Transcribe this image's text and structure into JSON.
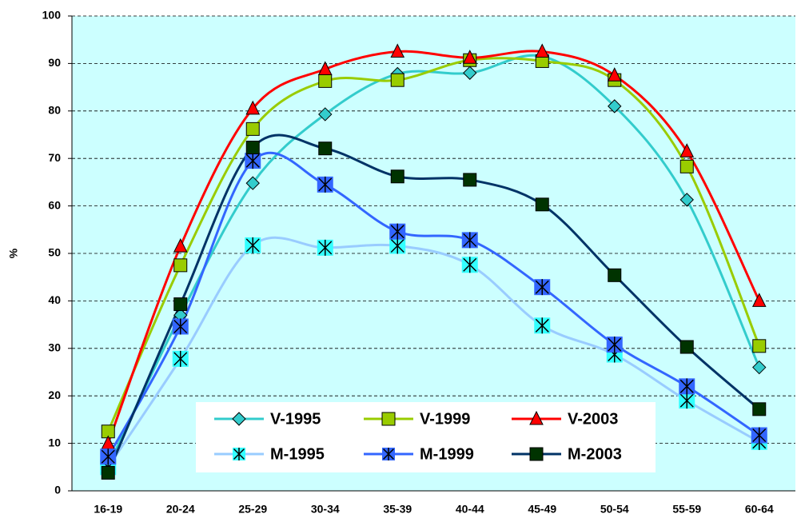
{
  "chart_data": {
    "type": "line",
    "y_label": "%",
    "categories": [
      "16-19",
      "20-24",
      "25-29",
      "30-34",
      "35-39",
      "40-44",
      "45-49",
      "50-54",
      "55-59",
      "60-64"
    ],
    "ylim": [
      0,
      100
    ],
    "yticks": [
      0,
      10,
      20,
      30,
      40,
      50,
      60,
      70,
      80,
      90,
      100
    ],
    "grid": true,
    "smooth": true,
    "series": [
      {
        "name": "V-1995",
        "color": "#33cccc",
        "marker": "diamond",
        "marker_color": "#33cccc",
        "values": [
          5.2,
          37,
          64.8,
          79.3,
          87.8,
          88,
          91.5,
          81,
          61.3,
          26
        ]
      },
      {
        "name": "V-1999",
        "color": "#99cc00",
        "marker": "square",
        "marker_color": "#99cc00",
        "values": [
          12.5,
          47.5,
          76.2,
          86.3,
          86.5,
          90.7,
          90.5,
          86.5,
          68.3,
          30.5
        ]
      },
      {
        "name": "V-2003",
        "color": "#ff0000",
        "marker": "triangle",
        "marker_color": "#ff0000",
        "values": [
          10,
          51.5,
          80.5,
          88.8,
          92.5,
          91.2,
          92.5,
          87.5,
          71.5,
          40
        ]
      },
      {
        "name": "M-1995",
        "color": "#99ccff",
        "marker": "star-square",
        "marker_color": "#33ffff",
        "values": [
          5,
          27.8,
          51.7,
          51.2,
          51.6,
          47.6,
          34.8,
          28.7,
          19,
          10.3
        ]
      },
      {
        "name": "M-1999",
        "color": "#3366ff",
        "marker": "star-square",
        "marker_color": "#3366ff",
        "values": [
          7.2,
          34.6,
          69.5,
          64.5,
          54.6,
          52.8,
          42.9,
          30.8,
          22,
          11.7
        ]
      },
      {
        "name": "M-2003",
        "color": "#003366",
        "marker": "square",
        "marker_color": "#003300",
        "values": [
          3.8,
          39.3,
          72.3,
          72.1,
          66.2,
          65.5,
          60.3,
          45.4,
          30.3,
          17.2
        ]
      }
    ]
  }
}
